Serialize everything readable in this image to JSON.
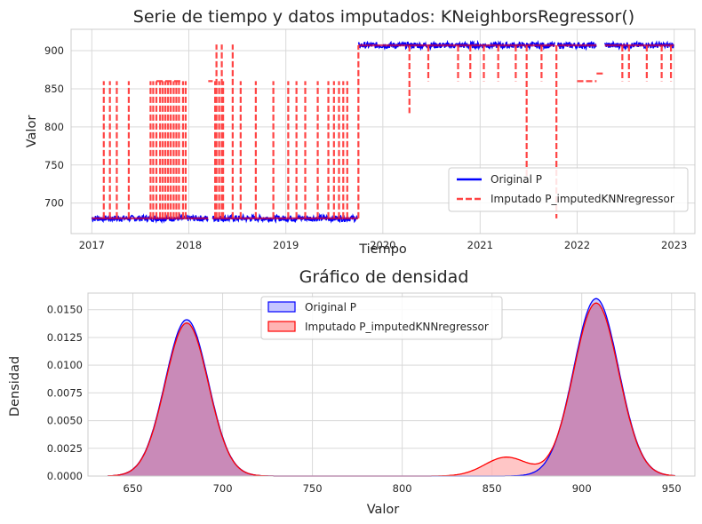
{
  "chart_data": [
    {
      "type": "line",
      "title": "Serie de tiempo y datos imputados: KNeighborsRegressor()",
      "xlabel": "Tiempo",
      "ylabel": "Valor",
      "xlim": [
        "2016-10-15",
        "2023-03-20"
      ],
      "ylim": [
        660,
        928
      ],
      "x_ticks": [
        "2017",
        "2018",
        "2019",
        "2020",
        "2021",
        "2022",
        "2023"
      ],
      "y_ticks": [
        700,
        750,
        800,
        850,
        900
      ],
      "grid": true,
      "legend": {
        "placement": "lower-right"
      },
      "series": [
        {
          "name": "Original P",
          "color": "#0000ff",
          "style": "solid",
          "segments": [
            {
              "start": "2017-01-01",
              "end": "2017-12-31",
              "value": 680
            },
            {
              "start": "2018-01-01",
              "end": "2018-03-15",
              "value": 680
            },
            {
              "start": "2018-04-01",
              "end": "2019-09-30",
              "value": 680
            },
            {
              "start": "2019-10-01",
              "end": "2021-10-10",
              "value": 907
            },
            {
              "start": "2021-10-20",
              "end": "2022-03-15",
              "value": 907
            },
            {
              "start": "2022-04-15",
              "end": "2022-12-31",
              "value": 907
            }
          ]
        },
        {
          "name": "Imputado P_imputedKNNregressor",
          "color": "#ff4444",
          "style": "dashed",
          "spikes_to_860": [
            "2017-02-15",
            "2017-03-10",
            "2017-04-05",
            "2017-05-20",
            "2017-08-10",
            "2017-08-20",
            "2017-09-01",
            "2017-09-15",
            "2017-09-25",
            "2017-10-05",
            "2017-10-15",
            "2017-10-25",
            "2017-11-05",
            "2017-11-15",
            "2017-11-25",
            "2017-12-10",
            "2017-12-20",
            "2018-04-10",
            "2018-04-25",
            "2018-05-10",
            "2018-07-15",
            "2018-09-10",
            "2018-11-15",
            "2019-01-10",
            "2019-02-10",
            "2019-03-15",
            "2019-05-01",
            "2019-06-10",
            "2019-07-01",
            "2019-07-20",
            "2019-08-05",
            "2019-08-20"
          ],
          "spikes_to_908": [
            "2018-04-15",
            "2018-05-05",
            "2018-06-15"
          ],
          "spikes_below_907": [
            {
              "x": "2020-04-10",
              "v": 818
            },
            {
              "x": "2020-06-20",
              "v": 860
            },
            {
              "x": "2020-10-10",
              "v": 860
            },
            {
              "x": "2020-11-25",
              "v": 860
            },
            {
              "x": "2021-01-15",
              "v": 860
            },
            {
              "x": "2021-03-10",
              "v": 860
            },
            {
              "x": "2021-05-15",
              "v": 860
            },
            {
              "x": "2021-06-25",
              "v": 735
            },
            {
              "x": "2021-08-20",
              "v": 860
            },
            {
              "x": "2021-10-15",
              "v": 680
            },
            {
              "x": "2022-06-20",
              "v": 860
            },
            {
              "x": "2022-07-15",
              "v": 860
            },
            {
              "x": "2022-09-20",
              "v": 860
            },
            {
              "x": "2022-11-15",
              "v": 860
            },
            {
              "x": "2022-12-20",
              "v": 860
            }
          ],
          "plateaus": [
            {
              "start": "2017-09-01",
              "end": "2017-11-30",
              "value": 860
            },
            {
              "start": "2018-03-15",
              "end": "2018-04-01",
              "value": 860
            },
            {
              "start": "2022-01-01",
              "end": "2022-03-15",
              "value": 860
            },
            {
              "start": "2022-03-15",
              "end": "2022-04-15",
              "value": 870
            }
          ]
        }
      ]
    },
    {
      "type": "area",
      "title": "Gráfico de densidad",
      "xlabel": "Valor",
      "ylabel": "Densidad",
      "xlim": [
        625,
        963
      ],
      "ylim": [
        0,
        0.0165
      ],
      "x_ticks": [
        650,
        700,
        750,
        800,
        850,
        900,
        950
      ],
      "y_ticks": [
        "0.0000",
        "0.0025",
        "0.0050",
        "0.0075",
        "0.0100",
        "0.0125",
        "0.0150"
      ],
      "grid": true,
      "legend": {
        "placement": "top-center"
      },
      "x_range": [
        636,
        952
      ],
      "series": [
        {
          "name": "Original P",
          "color": "#0000ff",
          "fill": "#c6c6ff",
          "components": [
            {
              "mu": 680,
              "sigma": 12,
              "peak": 0.0141
            },
            {
              "mu": 908,
              "sigma": 12.5,
              "peak": 0.016
            }
          ]
        },
        {
          "name": "Imputado P_imputedKNNregressor",
          "color": "#ff0000",
          "fill": "#ffb3b3",
          "components": [
            {
              "mu": 680,
              "sigma": 12,
              "peak": 0.0138
            },
            {
              "mu": 908,
              "sigma": 12.5,
              "peak": 0.0156
            },
            {
              "mu": 858,
              "sigma": 12,
              "peak": 0.0017
            }
          ]
        }
      ]
    }
  ]
}
